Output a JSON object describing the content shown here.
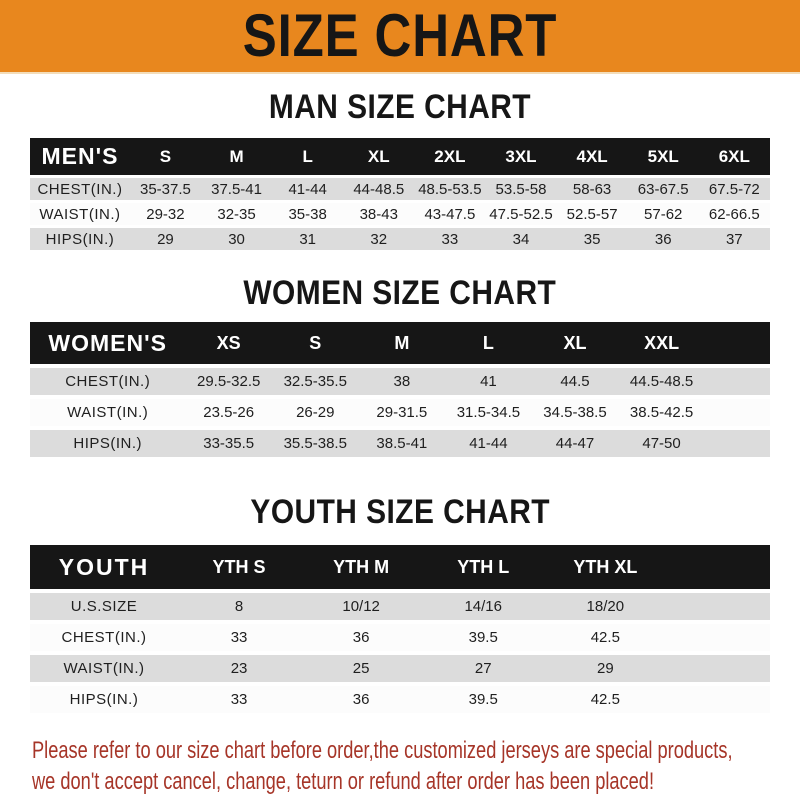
{
  "banner": {
    "title": "SIZE CHART"
  },
  "colors": {
    "banner_bg": "#E8871E",
    "header_bar": "#161616",
    "row_gray": "#DCDCDC",
    "note_red": "#A63528"
  },
  "sections": [
    {
      "heading": "MAN SIZE CHART",
      "table": {
        "header_label": "MEN'S",
        "columns": [
          "S",
          "M",
          "L",
          "XL",
          "2XL",
          "3XL",
          "4XL",
          "5XL",
          "6XL"
        ],
        "rows": [
          {
            "label": "CHEST(IN.)",
            "values": [
              "35-37.5",
              "37.5-41",
              "41-44",
              "44-48.5",
              "48.5-53.5",
              "53.5-58",
              "58-63",
              "63-67.5",
              "67.5-72"
            ]
          },
          {
            "label": "WAIST(IN.)",
            "values": [
              "29-32",
              "32-35",
              "35-38",
              "38-43",
              "43-47.5",
              "47.5-52.5",
              "52.5-57",
              "57-62",
              "62-66.5"
            ]
          },
          {
            "label": "HIPS(IN.)",
            "values": [
              "29",
              "30",
              "31",
              "32",
              "33",
              "34",
              "35",
              "36",
              "37"
            ]
          }
        ]
      }
    },
    {
      "heading": "WOMEN SIZE CHART",
      "table": {
        "header_label": "WOMEN'S",
        "columns": [
          "XS",
          "S",
          "M",
          "L",
          "XL",
          "XXL"
        ],
        "rows": [
          {
            "label": "CHEST(IN.)",
            "values": [
              "29.5-32.5",
              "32.5-35.5",
              "38",
              "41",
              "44.5",
              "44.5-48.5"
            ]
          },
          {
            "label": "WAIST(IN.)",
            "values": [
              "23.5-26",
              "26-29",
              "29-31.5",
              "31.5-34.5",
              "34.5-38.5",
              "38.5-42.5"
            ]
          },
          {
            "label": "HIPS(IN.)",
            "values": [
              "33-35.5",
              "35.5-38.5",
              "38.5-41",
              "41-44",
              "44-47",
              "47-50"
            ]
          }
        ]
      }
    },
    {
      "heading": "YOUTH SIZE CHART",
      "table": {
        "header_label": "YOUTH",
        "columns": [
          "YTH S",
          "YTH M",
          "YTH L",
          "YTH XL"
        ],
        "rows": [
          {
            "label": "U.S.SIZE",
            "values": [
              "8",
              "10/12",
              "14/16",
              "18/20"
            ]
          },
          {
            "label": "CHEST(IN.)",
            "values": [
              "33",
              "36",
              "39.5",
              "42.5"
            ]
          },
          {
            "label": "WAIST(IN.)",
            "values": [
              "23",
              "25",
              "27",
              "29"
            ]
          },
          {
            "label": "HIPS(IN.)",
            "values": [
              "33",
              "36",
              "39.5",
              "42.5"
            ]
          }
        ]
      }
    }
  ],
  "footer": {
    "lines": [
      "Please refer to our size chart before order,the customized jerseys are special products,",
      "we don't accept cancel, change, teturn or refund after order has been placed!"
    ]
  }
}
